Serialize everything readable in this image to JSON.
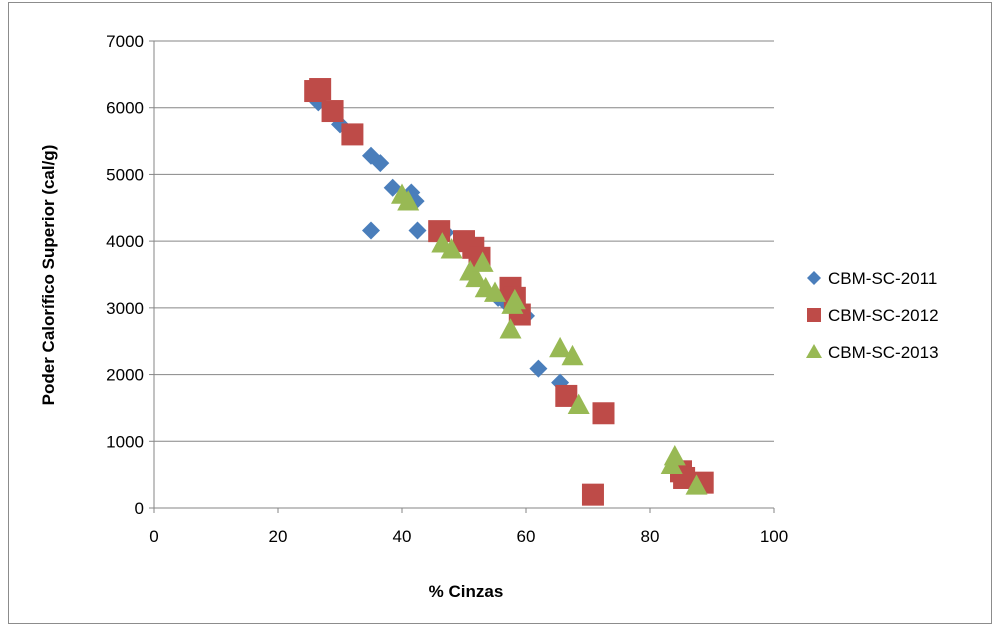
{
  "chart_data": {
    "type": "scatter",
    "title": "",
    "xlabel": "% Cinzas",
    "ylabel": "Poder Calorífico Superior (cal/g)",
    "xlim": [
      0,
      100
    ],
    "ylim": [
      0,
      7000
    ],
    "x_ticks": [
      "0",
      "20",
      "40",
      "60",
      "80",
      "100"
    ],
    "y_ticks": [
      "0",
      "1000",
      "2000",
      "3000",
      "4000",
      "5000",
      "6000",
      "7000"
    ],
    "grid": "horizontal",
    "legend_position": "right",
    "series": [
      {
        "name": "CBM-SC-2011",
        "marker": "diamond",
        "color": "#4a7ebb",
        "points": [
          [
            26.5,
            6080
          ],
          [
            30,
            5750
          ],
          [
            35,
            5280
          ],
          [
            36.5,
            5170
          ],
          [
            38.5,
            4800
          ],
          [
            41.5,
            4730
          ],
          [
            42.2,
            4600
          ],
          [
            35,
            4160
          ],
          [
            42.5,
            4160
          ],
          [
            47,
            4130
          ],
          [
            52,
            3850
          ],
          [
            55.5,
            3150
          ],
          [
            57,
            3050
          ],
          [
            60,
            2880
          ],
          [
            62,
            2090
          ],
          [
            65.5,
            1880
          ]
        ]
      },
      {
        "name": "CBM-SC-2012",
        "marker": "square",
        "color": "#be4b48",
        "points": [
          [
            26,
            6250
          ],
          [
            26.8,
            6280
          ],
          [
            28.8,
            5950
          ],
          [
            32,
            5600
          ],
          [
            46,
            4150
          ],
          [
            50,
            4000
          ],
          [
            51.5,
            3900
          ],
          [
            52.5,
            3750
          ],
          [
            57.5,
            3300
          ],
          [
            58.2,
            3150
          ],
          [
            59,
            2900
          ],
          [
            66.5,
            1680
          ],
          [
            72.5,
            1420
          ],
          [
            70.8,
            200
          ],
          [
            85,
            550
          ],
          [
            85.5,
            450
          ],
          [
            88.5,
            380
          ]
        ]
      },
      {
        "name": "CBM-SC-2013",
        "marker": "triangle",
        "color": "#98b954",
        "points": [
          [
            40,
            4700
          ],
          [
            41,
            4600
          ],
          [
            46.5,
            3970
          ],
          [
            48,
            3880
          ],
          [
            51,
            3550
          ],
          [
            52,
            3450
          ],
          [
            53,
            3680
          ],
          [
            53.5,
            3300
          ],
          [
            55,
            3230
          ],
          [
            57.5,
            2680
          ],
          [
            57.8,
            3050
          ],
          [
            58.2,
            3120
          ],
          [
            65.5,
            2400
          ],
          [
            67.5,
            2280
          ],
          [
            68.5,
            1550
          ],
          [
            84,
            780
          ],
          [
            83.5,
            650
          ],
          [
            87.5,
            340
          ]
        ]
      }
    ]
  }
}
